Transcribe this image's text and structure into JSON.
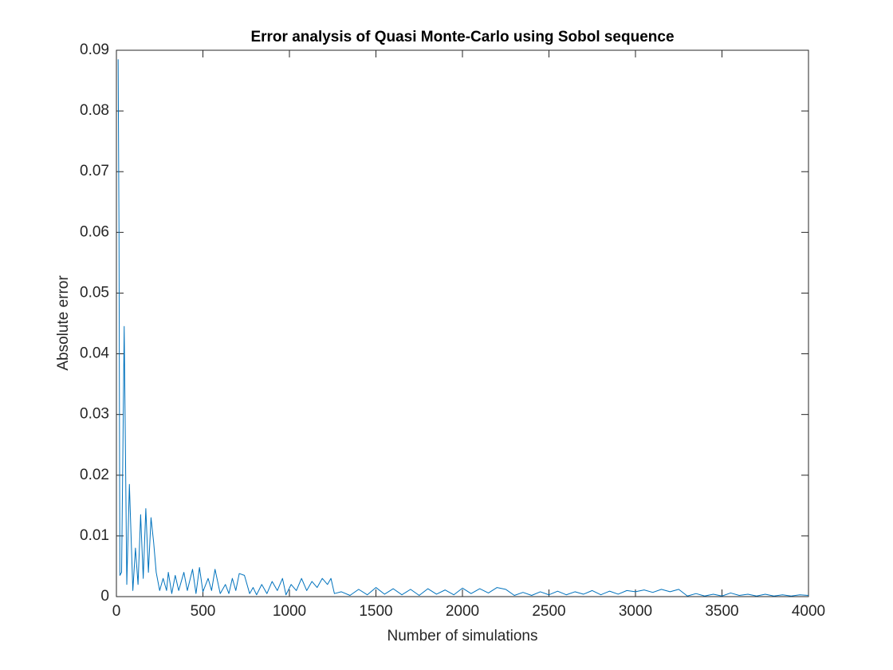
{
  "chart_data": {
    "type": "line",
    "title": "Error analysis of Quasi Monte-Carlo using Sobol sequence",
    "xlabel": "Number of simulations",
    "ylabel": "Absolute error",
    "xlim": [
      0,
      4000
    ],
    "xticks": [
      0,
      500,
      1000,
      1500,
      2000,
      2500,
      3000,
      3500,
      4000
    ],
    "ylim": [
      0,
      0.09
    ],
    "yticks": [
      0,
      0.01,
      0.02,
      0.03,
      0.04,
      0.05,
      0.06,
      0.07,
      0.08,
      0.09
    ],
    "grid": false,
    "series": [
      {
        "color": "#0072bd",
        "x": [
          10,
          15,
          20,
          30,
          45,
          60,
          75,
          95,
          110,
          125,
          140,
          155,
          170,
          185,
          200,
          215,
          230,
          250,
          270,
          290,
          300,
          320,
          340,
          360,
          390,
          410,
          440,
          460,
          480,
          500,
          530,
          550,
          570,
          600,
          630,
          650,
          670,
          690,
          710,
          740,
          770,
          790,
          810,
          840,
          870,
          900,
          930,
          960,
          980,
          1010,
          1040,
          1070,
          1100,
          1130,
          1160,
          1190,
          1220,
          1240,
          1260,
          1300,
          1350,
          1400,
          1450,
          1500,
          1550,
          1600,
          1650,
          1700,
          1750,
          1800,
          1850,
          1900,
          1950,
          2000,
          2050,
          2100,
          2150,
          2200,
          2250,
          2300,
          2350,
          2400,
          2450,
          2500,
          2550,
          2600,
          2650,
          2700,
          2750,
          2800,
          2850,
          2900,
          2950,
          3000,
          3050,
          3100,
          3150,
          3200,
          3250,
          3300,
          3350,
          3400,
          3450,
          3500,
          3550,
          3600,
          3650,
          3700,
          3750,
          3800,
          3850,
          3900,
          3950,
          4000
        ],
        "values": [
          0.0885,
          0.06,
          0.0035,
          0.004,
          0.0445,
          0.002,
          0.0185,
          0.001,
          0.008,
          0.002,
          0.0135,
          0.003,
          0.0145,
          0.004,
          0.013,
          0.009,
          0.004,
          0.001,
          0.003,
          0.001,
          0.004,
          0.0005,
          0.0035,
          0.001,
          0.004,
          0.001,
          0.0045,
          0.0005,
          0.0048,
          0.0008,
          0.003,
          0.001,
          0.0045,
          0.0005,
          0.002,
          0.0005,
          0.003,
          0.001,
          0.0038,
          0.0035,
          0.0005,
          0.0015,
          0.0003,
          0.002,
          0.0005,
          0.0025,
          0.001,
          0.003,
          0.0003,
          0.002,
          0.001,
          0.003,
          0.001,
          0.0025,
          0.0015,
          0.003,
          0.002,
          0.003,
          0.0005,
          0.0008,
          0.0002,
          0.0012,
          0.0003,
          0.0015,
          0.0004,
          0.0013,
          0.0003,
          0.0012,
          0.0002,
          0.0013,
          0.0004,
          0.0011,
          0.0003,
          0.0014,
          0.0005,
          0.0013,
          0.0006,
          0.0015,
          0.0012,
          0.0002,
          0.0007,
          0.0002,
          0.0008,
          0.0003,
          0.0009,
          0.0003,
          0.0008,
          0.0004,
          0.001,
          0.0003,
          0.0009,
          0.0004,
          0.001,
          0.0008,
          0.0011,
          0.0007,
          0.0012,
          0.0008,
          0.0012,
          0.0001,
          0.0005,
          0.0001,
          0.0004,
          0.0001,
          0.0006,
          0.0002,
          0.0004,
          0.0001,
          0.0004,
          0.0001,
          0.0003,
          0.0001,
          0.0003,
          0.0002
        ]
      }
    ]
  }
}
